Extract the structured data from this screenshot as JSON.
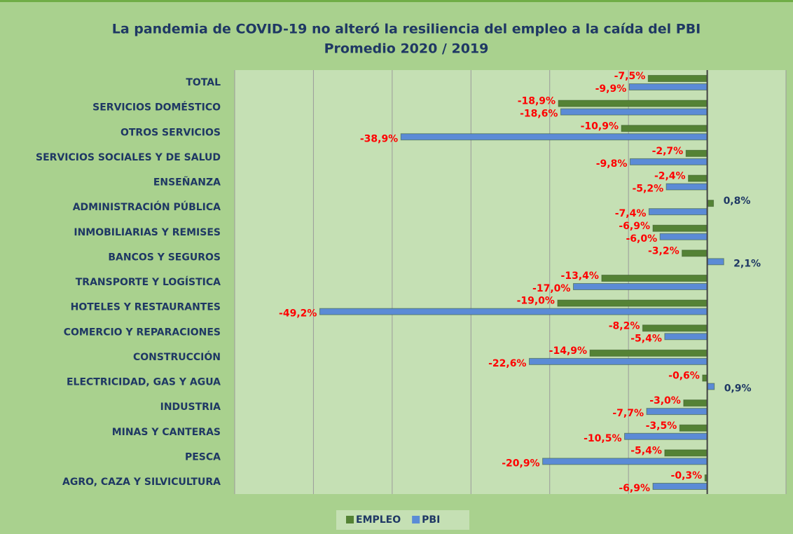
{
  "chart_data": {
    "type": "hbar",
    "title": "La pandemia de COVID-19 no alteró la resiliencia del empleo a la caída del PBI",
    "subtitle": "Promedio 2020 / 2019",
    "categories": [
      "TOTAL",
      "SERVICIOS DOMÉSTICO",
      "OTROS SERVICIOS",
      "SERVICIOS SOCIALES Y DE SALUD",
      "ENSEÑANZA",
      "ADMINISTRACIÓN PÚBLICA",
      "INMOBILIARIAS Y REMISES",
      "BANCOS Y SEGUROS",
      "TRANSPORTE Y LOGÍSTICA",
      "HOTELES Y RESTAURANTES",
      "COMERCIO Y REPARACIONES",
      "CONSTRUCCIÓN",
      "ELECTRICIDAD, GAS Y AGUA",
      "INDUSTRIA",
      "MINAS Y CANTERAS",
      "PESCA",
      "AGRO, CAZA Y SILVICULTURA"
    ],
    "series": [
      {
        "name": "EMPLEO",
        "color": "#548235",
        "values": [
          -7.5,
          -18.9,
          -10.9,
          -2.7,
          -2.4,
          0.8,
          -6.9,
          -3.2,
          -13.4,
          -19.0,
          -8.2,
          -14.9,
          -0.6,
          -3.0,
          -3.5,
          -5.4,
          -0.3
        ],
        "value_labels": [
          "-7,5%",
          "-18,9%",
          "-10,9%",
          "-2,7%",
          "-2,4%",
          "0,8%",
          "-6,9%",
          "-3,2%",
          "-13,4%",
          "-19,0%",
          "-8,2%",
          "-14,9%",
          "-0,6%",
          "-3,0%",
          "-3,5%",
          "-5,4%",
          "-0,3%"
        ]
      },
      {
        "name": "PBI",
        "color": "#5b8bd6",
        "values": [
          -9.9,
          -18.6,
          -38.9,
          -9.8,
          -5.2,
          -7.4,
          -6.0,
          2.1,
          -17.0,
          -49.2,
          -5.4,
          -22.6,
          0.9,
          -7.7,
          -10.5,
          -20.9,
          -6.9
        ],
        "value_labels": [
          "-9,9%",
          "-18,6%",
          "-38,9%",
          "-9,8%",
          "-5,2%",
          "-7,4%",
          "-6,0%",
          "2,1%",
          "-17,0%",
          "-49,2%",
          "-5,4%",
          "-22,6%",
          "0,9%",
          "-7,7%",
          "-10,5%",
          "-20,9%",
          "-6,9%"
        ]
      }
    ],
    "xlim": [
      -60,
      10
    ],
    "xticks": [
      -60,
      -50,
      -40,
      -30,
      -20,
      -10,
      0,
      10
    ],
    "grid": true,
    "label_colors": {
      "negative": "#ff0000",
      "positive": "#1f3864"
    }
  }
}
